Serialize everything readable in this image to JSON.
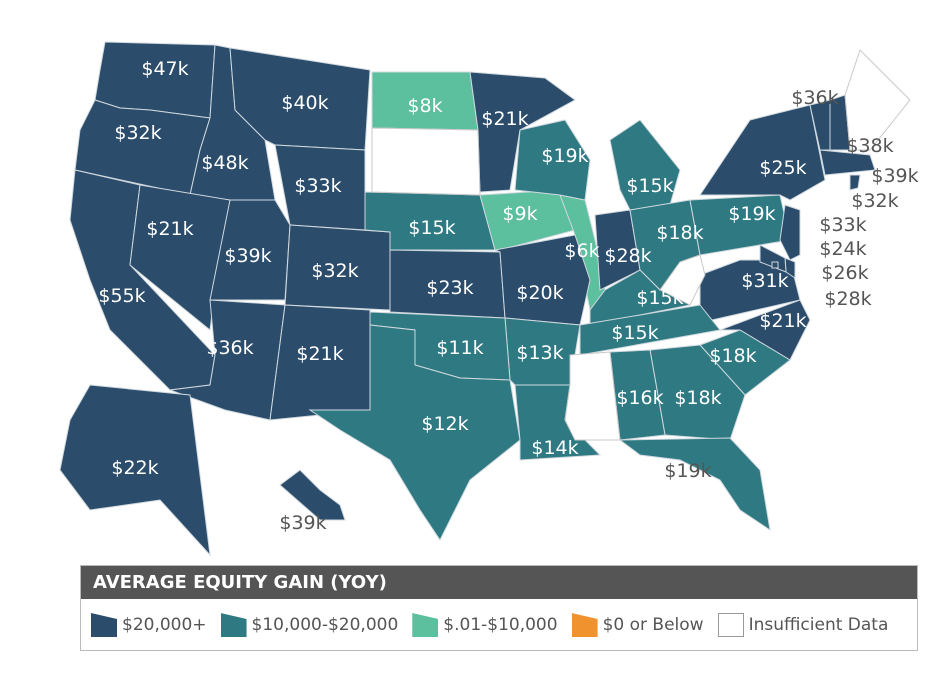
{
  "legend": {
    "title": "AVERAGE EQUITY GAIN (YOY)",
    "items": [
      {
        "label": "$20,000+",
        "color": "#2b4c6b"
      },
      {
        "label": "$10,000-$20,000",
        "color": "#2f7a82"
      },
      {
        "label": "$.01-$10,000",
        "color": "#5cbf9e"
      },
      {
        "label": "$0 or Below",
        "color": "#f0922e"
      },
      {
        "label": "Insufficient Data",
        "color": "#ffffff"
      }
    ]
  },
  "regions": [
    {
      "value": "$47k",
      "tier": 0
    },
    {
      "value": "$32k",
      "tier": 0
    },
    {
      "value": "$48k",
      "tier": 0
    },
    {
      "value": "$40k",
      "tier": 0
    },
    {
      "value": "$8k",
      "tier": 2
    },
    {
      "value": "$21k",
      "tier": 0
    },
    {
      "value": "$33k",
      "tier": 0
    },
    {
      "value": "$55k",
      "tier": 0
    },
    {
      "value": "$21k",
      "tier": 0
    },
    {
      "value": "$39k",
      "tier": 0
    },
    {
      "value": "$32k",
      "tier": 0
    },
    {
      "value": "$15k",
      "tier": 1
    },
    {
      "value": "$9k",
      "tier": 2
    },
    {
      "value": "$6k",
      "tier": 2
    },
    {
      "value": "$19k",
      "tier": 1
    },
    {
      "value": "$15k",
      "tier": 1
    },
    {
      "value": "$36k",
      "tier": 0
    },
    {
      "value": "$21k",
      "tier": 0
    },
    {
      "value": "$23k",
      "tier": 0
    },
    {
      "value": "$20k",
      "tier": 0
    },
    {
      "value": "$28k",
      "tier": 0
    },
    {
      "value": "$18k",
      "tier": 1
    },
    {
      "value": "$19k",
      "tier": 1
    },
    {
      "value": "$25k",
      "tier": 0
    },
    {
      "value": "$15k",
      "tier": 1
    },
    {
      "value": "$31k",
      "tier": 0
    },
    {
      "value": "$15k",
      "tier": 1
    },
    {
      "value": "$21k",
      "tier": 0
    },
    {
      "value": "$18k",
      "tier": 1
    },
    {
      "value": "$18k",
      "tier": 1
    },
    {
      "value": "$16k",
      "tier": 1
    },
    {
      "value": "$13k",
      "tier": 1
    },
    {
      "value": "$11k",
      "tier": 1
    },
    {
      "value": "$12k",
      "tier": 1
    },
    {
      "value": "$14k",
      "tier": 1
    },
    {
      "value": "$19k",
      "tier": 1
    },
    {
      "value": "$22k",
      "tier": 0
    },
    {
      "value": "$39k",
      "tier": 0
    },
    {
      "value": "$36k",
      "tier": 0
    },
    {
      "value": "$38k",
      "tier": 0
    },
    {
      "value": "$39k",
      "tier": 0
    },
    {
      "value": "$32k",
      "tier": 0
    },
    {
      "value": "$33k",
      "tier": 0
    },
    {
      "value": "$24k",
      "tier": 0
    },
    {
      "value": "$26k",
      "tier": 0
    },
    {
      "value": "$28k",
      "tier": 0
    },
    {
      "value": "",
      "tier": 4
    },
    {
      "value": "",
      "tier": 4
    },
    {
      "value": "",
      "tier": 4
    },
    {
      "value": "",
      "tier": 4
    }
  ]
}
